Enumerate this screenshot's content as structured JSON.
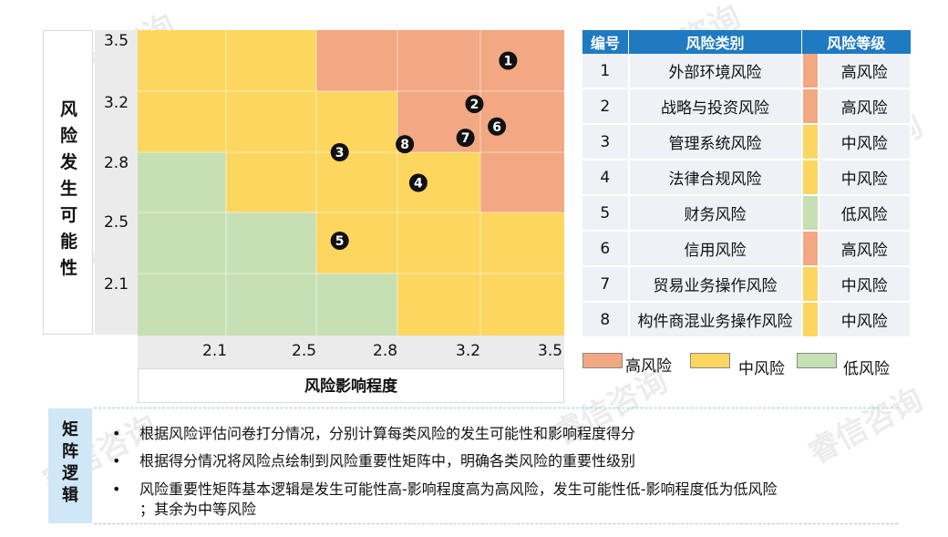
{
  "watermark": "睿信咨询",
  "chart_data": {
    "type": "scatter",
    "title": "",
    "xlabel": "风险影响程度",
    "ylabel": "风险发生可能性",
    "xlim": [
      1.6,
      3.5
    ],
    "ylim": [
      1.6,
      3.5
    ],
    "x_ticks": [
      "2.1",
      "2.5",
      "2.8",
      "3.2",
      "3.5"
    ],
    "y_ticks": [
      "3.5",
      "3.2",
      "2.8",
      "2.5",
      "2.1"
    ],
    "points": [
      {
        "label": "1",
        "x": 3.25,
        "y": 3.31
      },
      {
        "label": "2",
        "x": 3.1,
        "y": 3.04
      },
      {
        "label": "3",
        "x": 2.5,
        "y": 2.74
      },
      {
        "label": "4",
        "x": 2.85,
        "y": 2.55
      },
      {
        "label": "5",
        "x": 2.5,
        "y": 2.19
      },
      {
        "label": "6",
        "x": 3.2,
        "y": 2.9
      },
      {
        "label": "7",
        "x": 3.06,
        "y": 2.83
      },
      {
        "label": "8",
        "x": 2.79,
        "y": 2.79
      }
    ],
    "colors": {
      "high": "#f2a882",
      "mid": "#fdd660",
      "low": "#c6dfb3"
    }
  },
  "table": {
    "headers": [
      "编号",
      "风险类别",
      "风险等级"
    ],
    "rows": [
      {
        "no": "1",
        "category": "外部环境风险",
        "level": "高风险",
        "color": "#f2a882"
      },
      {
        "no": "2",
        "category": "战略与投资风险",
        "level": "高风险",
        "color": "#f2a882"
      },
      {
        "no": "3",
        "category": "管理系统风险",
        "level": "中风险",
        "color": "#fdd660"
      },
      {
        "no": "4",
        "category": "法律合规风险",
        "level": "中风险",
        "color": "#fdd660"
      },
      {
        "no": "5",
        "category": "财务风险",
        "level": "低风险",
        "color": "#c6dfb3"
      },
      {
        "no": "6",
        "category": "信用风险",
        "level": "高风险",
        "color": "#f2a882"
      },
      {
        "no": "7",
        "category": "贸易业务操作风险",
        "level": "中风险",
        "color": "#fdd660"
      },
      {
        "no": "8",
        "category": "构件商混业务操作风险",
        "level": "中风险",
        "color": "#fdd660"
      }
    ]
  },
  "legend": [
    {
      "label": "高风险",
      "color": "#f2a882"
    },
    {
      "label": "中风险",
      "color": "#fdd660"
    },
    {
      "label": "低风险",
      "color": "#c6dfb3"
    }
  ],
  "logic": {
    "title": "矩阵逻辑",
    "bullet": "•",
    "lines": [
      "根据风险评估问卷打分情况，分别计算每类风险的发生可能性和影响程度得分",
      "根据得分情况将风险点绘制到风险重要性矩阵中，明确各类风险的重要性级别",
      "风险重要性矩阵基本逻辑是发生可能性高-影响程度高为高风险，发生可能性低-影响程度低为低风险",
      "；其余为中等风险"
    ]
  }
}
